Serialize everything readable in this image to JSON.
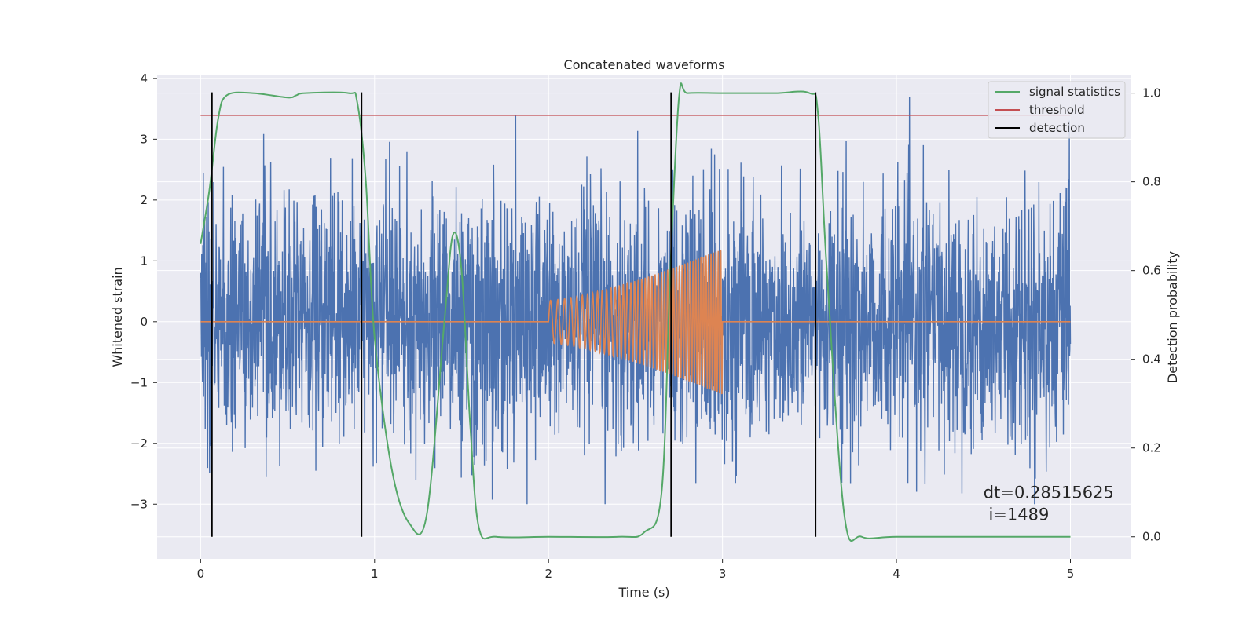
{
  "chart_data": {
    "type": "line",
    "title": "Concatenated waveforms",
    "xlabel": "Time (s)",
    "ylabel": "Whitened strain",
    "ylabel_right": "Detection probability",
    "xlim": [
      -0.25,
      5.35
    ],
    "ylim": [
      -3.9,
      4.05
    ],
    "ylim_right": [
      -0.05,
      1.04
    ],
    "xticks": [
      0,
      1,
      2,
      3,
      4,
      5
    ],
    "yticks": [
      -3,
      -2,
      -1,
      0,
      1,
      2,
      3,
      4
    ],
    "yticks_right": [
      0.0,
      0.2,
      0.4,
      0.6,
      0.8,
      1.0
    ],
    "grid": true,
    "legend_position": "top-right",
    "colors": {
      "strain": "#4c72b0",
      "injected": "#dd8452",
      "signal_statistics": "#55a868",
      "threshold": "#c44e52",
      "detection": "#000000",
      "background": "#eaeaf2",
      "grid": "#ffffff"
    },
    "legend": [
      {
        "key": "signal_statistics",
        "label": "signal statistics"
      },
      {
        "key": "threshold",
        "label": "threshold"
      },
      {
        "key": "detection",
        "label": "detection"
      }
    ],
    "series": [
      {
        "key": "strain",
        "axis": "left",
        "x_range": [
          0,
          5
        ],
        "min": -3.0,
        "max": 3.7
      },
      {
        "key": "injected",
        "axis": "left",
        "x_range": [
          0,
          5
        ],
        "chirp": {
          "start": 2.0,
          "end": 3.0,
          "amplitude_start": 0.35,
          "amplitude_end": 1.2
        }
      },
      {
        "key": "signal_statistics",
        "axis": "right",
        "x": [
          0.0,
          0.05,
          0.1,
          0.15,
          0.3,
          0.5,
          0.55,
          0.6,
          0.85,
          0.9,
          0.95,
          1.0,
          1.1,
          1.2,
          1.3,
          1.4,
          1.45,
          1.5,
          1.55,
          1.6,
          1.7,
          2.0,
          2.4,
          2.55,
          2.65,
          2.7,
          2.75,
          2.8,
          3.0,
          3.3,
          3.5,
          3.55,
          3.6,
          3.7,
          3.8,
          4.0,
          4.5,
          5.0
        ],
        "y": [
          0.66,
          0.78,
          0.94,
          0.995,
          1.0,
          0.99,
          0.995,
          1.0,
          1.0,
          0.98,
          0.8,
          0.45,
          0.15,
          0.03,
          0.05,
          0.48,
          0.68,
          0.6,
          0.25,
          0.02,
          0.0,
          0.0,
          0.0,
          0.01,
          0.1,
          0.6,
          0.99,
          1.0,
          1.0,
          1.0,
          1.0,
          0.95,
          0.6,
          0.05,
          0.0,
          0.0,
          0.0,
          0.0
        ]
      },
      {
        "key": "threshold",
        "axis": "right",
        "x": [
          0,
          5
        ],
        "y": [
          0.95,
          0.95
        ]
      }
    ],
    "detections": [
      0.065,
      0.925,
      2.705,
      3.535
    ],
    "annotation": {
      "x": 4.5,
      "y": -3.0,
      "lines": [
        "dt=0.28515625",
        " i=1489"
      ]
    }
  }
}
